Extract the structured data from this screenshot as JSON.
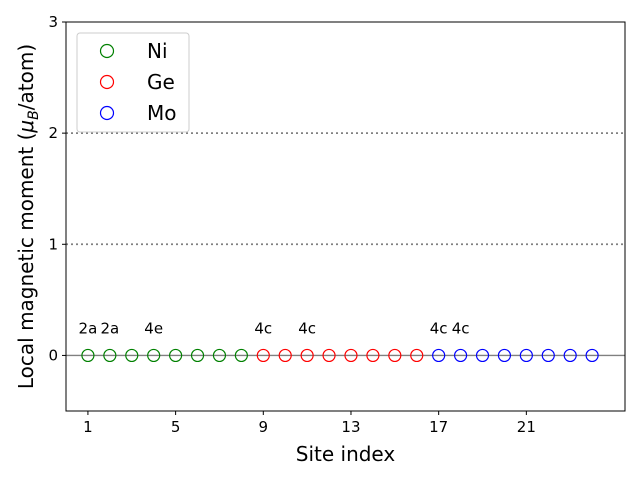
{
  "chart_data": {
    "type": "scatter",
    "xlabel": "Site index",
    "ylabel": "Local magnetic moment (μB/atom)",
    "xlim": [
      0.0,
      25.5
    ],
    "ylim": [
      -0.5,
      3.0
    ],
    "x_ticks": [
      1,
      5,
      9,
      13,
      17,
      21
    ],
    "y_ticks": [
      0,
      1,
      2,
      3
    ],
    "reference_lines": [
      {
        "y": 0,
        "style": "solid",
        "color": "#808080"
      },
      {
        "y": 1,
        "style": "dotted",
        "color": "#808080"
      },
      {
        "y": 2,
        "style": "dotted",
        "color": "#808080"
      }
    ],
    "marker": "open-circle",
    "legend": {
      "placement": "top-left"
    },
    "series": [
      {
        "name": "Ni",
        "color": "#008000",
        "x": [
          1,
          2,
          3,
          4,
          5,
          6,
          7,
          8
        ],
        "y": [
          0,
          0,
          0,
          0,
          0,
          0,
          0,
          0
        ]
      },
      {
        "name": "Ge",
        "color": "#ff0000",
        "x": [
          9,
          10,
          11,
          12,
          13,
          14,
          15,
          16
        ],
        "y": [
          0,
          0,
          0,
          0,
          0,
          0,
          0,
          0
        ]
      },
      {
        "name": "Mo",
        "color": "#0000ff",
        "x": [
          17,
          18,
          19,
          20,
          21,
          22,
          23,
          24
        ],
        "y": [
          0,
          0,
          0,
          0,
          0,
          0,
          0,
          0
        ]
      }
    ],
    "annotations": [
      {
        "text": "2a",
        "x": 1
      },
      {
        "text": "2a",
        "x": 2
      },
      {
        "text": "4e",
        "x": 4
      },
      {
        "text": "4c",
        "x": 9
      },
      {
        "text": "4c",
        "x": 11
      },
      {
        "text": "4c",
        "x": 17
      },
      {
        "text": "4c",
        "x": 18
      }
    ]
  }
}
